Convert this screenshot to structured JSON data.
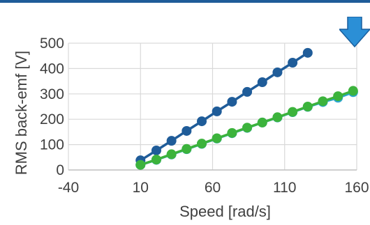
{
  "colors": {
    "top_rule": "#1f5c99",
    "arrow_fill": "#2b8fd6",
    "arrow_stroke": "#1a5f9e",
    "grid": "#d9d9d9",
    "axis_line": "#bfbfbf",
    "text": "#404040"
  },
  "icons": {
    "corner": "down-arrow-icon"
  },
  "chart_data": {
    "type": "scatter",
    "title": "",
    "xlabel": "Speed [rad/s]",
    "ylabel": "RMS back-emf [V]",
    "xlim": [
      -40,
      160
    ],
    "ylim": [
      0,
      500
    ],
    "x_ticks": [
      -40,
      10,
      60,
      110,
      160
    ],
    "y_ticks": [
      0,
      100,
      200,
      300,
      400,
      500
    ],
    "grid": true,
    "legend": "none",
    "series": [
      {
        "color": "#1f5c99",
        "x": [
          10,
          21,
          31.5,
          42,
          52.5,
          63,
          73.5,
          84,
          94.5,
          105,
          115.5,
          126
        ],
        "y": [
          38,
          77,
          115,
          154,
          192,
          231,
          269,
          308,
          346,
          385,
          423,
          462
        ]
      },
      {
        "color": "#2aa6cf",
        "x": [
          10,
          21,
          31.5,
          42,
          52.5,
          63,
          73.5,
          84,
          94.5,
          105,
          115.5,
          126,
          136.5,
          147,
          157.5
        ],
        "y": [
          20,
          40,
          61,
          82,
          103,
          124,
          145,
          166,
          187,
          207,
          228,
          249,
          268,
          285,
          307
        ]
      },
      {
        "color": "#3cb33c",
        "x": [
          10,
          21,
          31.5,
          42,
          52.5,
          63,
          73.5,
          84,
          94.5,
          105,
          115.5,
          126,
          136.5,
          147,
          157.5
        ],
        "y": [
          20,
          41,
          62,
          83,
          104,
          125,
          146,
          167,
          187,
          208,
          229,
          250,
          271,
          291,
          312
        ]
      }
    ]
  }
}
